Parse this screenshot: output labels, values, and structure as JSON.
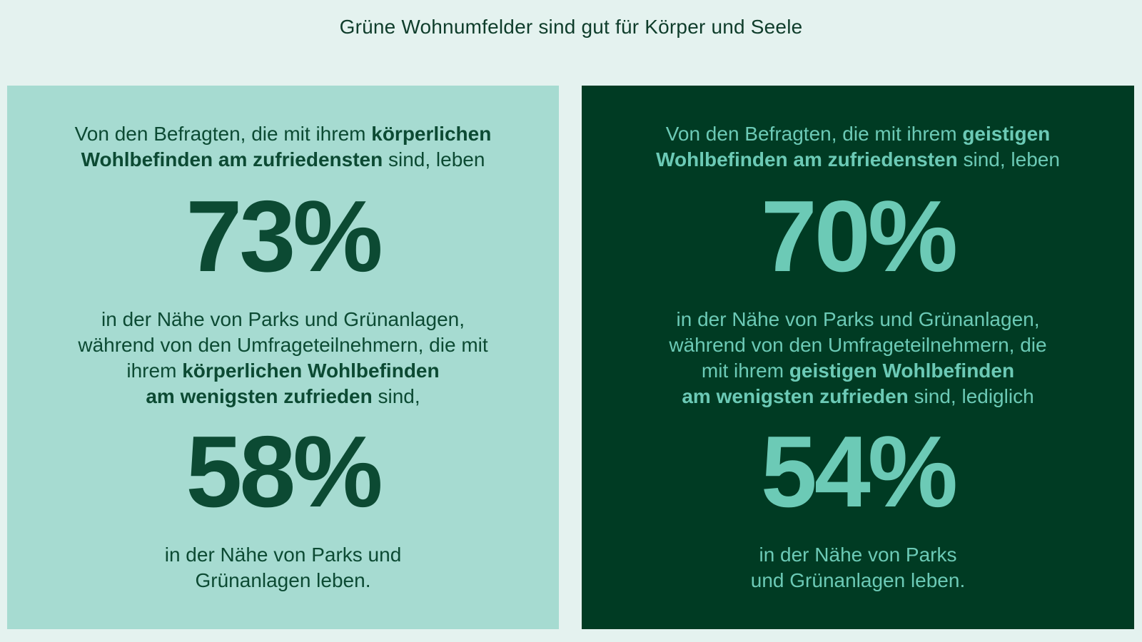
{
  "title": "Grüne Wohnumfelder sind gut für Körper und Seele",
  "colors": {
    "page_background": "#e4f2ef",
    "left_panel_background": "#a6dbd1",
    "left_panel_text": "#0c4a33",
    "right_panel_background": "#003b23",
    "right_panel_text": "#6ccab6"
  },
  "left_panel": {
    "intro": {
      "line1_pre": "Von den Befragten, die mit ihrem ",
      "line1_bold": "körperlichen",
      "line2_bold": "Wohlbefinden am zufriedensten",
      "line2_post": " sind, leben"
    },
    "stat1": "73%",
    "middle": {
      "line1": "in der Nähe von Parks und Grünanlagen,",
      "line2": "während von den Umfrageteilnehmern, die mit",
      "line3_pre": "ihrem ",
      "line3_bold": "körperlichen Wohlbefinden",
      "line4_bold": "am wenigsten zufrieden",
      "line4_post": " sind,"
    },
    "stat2": "58%",
    "outro": {
      "line1": "in der Nähe von Parks und",
      "line2": "Grünanlagen leben."
    }
  },
  "right_panel": {
    "intro": {
      "line1_pre": "Von den Befragten, die mit ihrem ",
      "line1_bold": "geistigen",
      "line2_bold": "Wohlbefinden am zufriedensten",
      "line2_post": " sind, leben"
    },
    "stat1": "70%",
    "middle": {
      "line1": "in der Nähe von Parks und Grünanlagen,",
      "line2": "während von den Umfrageteilnehmern, die",
      "line3_pre": "mit ihrem ",
      "line3_bold": "geistigen Wohlbefinden",
      "line4_bold": "am wenigsten zufrieden",
      "line4_post": " sind, lediglich"
    },
    "stat2": "54%",
    "outro": {
      "line1": "in der Nähe von Parks",
      "line2": "und Grünanlagen leben."
    }
  }
}
